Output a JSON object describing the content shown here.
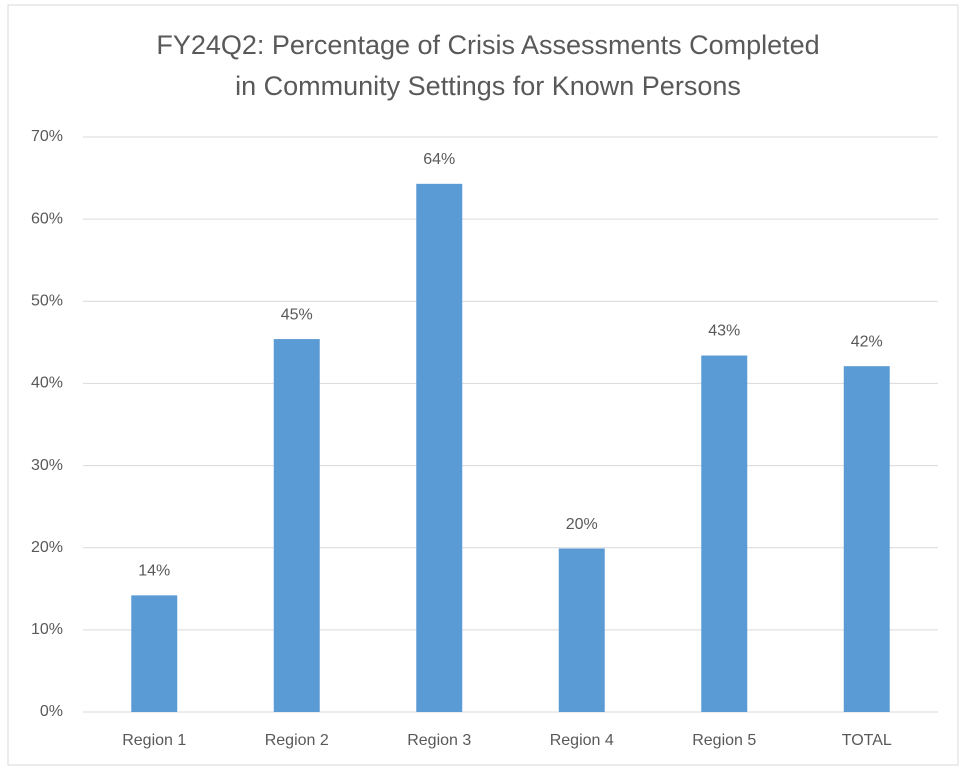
{
  "chart_data": {
    "type": "bar",
    "title": [
      "FY24Q2: Percentage of Crisis Assessments Completed",
      "in Community Settings for Known Persons"
    ],
    "categories": [
      "Region 1",
      "Region 2",
      "Region 3",
      "Region 4",
      "Region 5",
      "TOTAL"
    ],
    "values": [
      14.2,
      45.4,
      64.3,
      19.9,
      43.4,
      42.1
    ],
    "value_labels": [
      "14%",
      "45%",
      "64%",
      "20%",
      "43%",
      "42%"
    ],
    "color": "#5b9bd5",
    "ylim": [
      0,
      70
    ],
    "yticks": [
      {
        "value": 0,
        "label": "0%"
      },
      {
        "value": 10,
        "label": "10%"
      },
      {
        "value": 20,
        "label": "20%"
      },
      {
        "value": 30,
        "label": "30%"
      },
      {
        "value": 40,
        "label": "40%"
      },
      {
        "value": 50,
        "label": "50%"
      },
      {
        "value": 60,
        "label": "60%"
      },
      {
        "value": 70,
        "label": "70%"
      }
    ],
    "grid": true
  }
}
